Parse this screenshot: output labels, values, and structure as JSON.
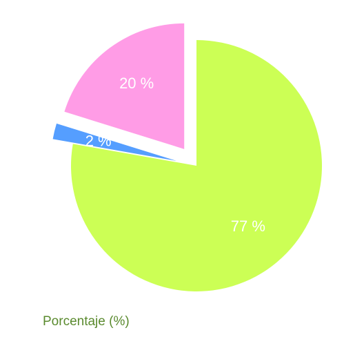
{
  "chart_data": {
    "type": "pie",
    "categories": [
      null,
      null,
      null
    ],
    "values": [
      77,
      2,
      20
    ],
    "value_labels": [
      "77 %",
      "2 %",
      "20 %"
    ],
    "colors": [
      "#ccff55",
      "#559eff",
      "#ff9ce6"
    ],
    "exploded": [
      false,
      true,
      true
    ],
    "xlabel": "Porcentaje (%)"
  }
}
